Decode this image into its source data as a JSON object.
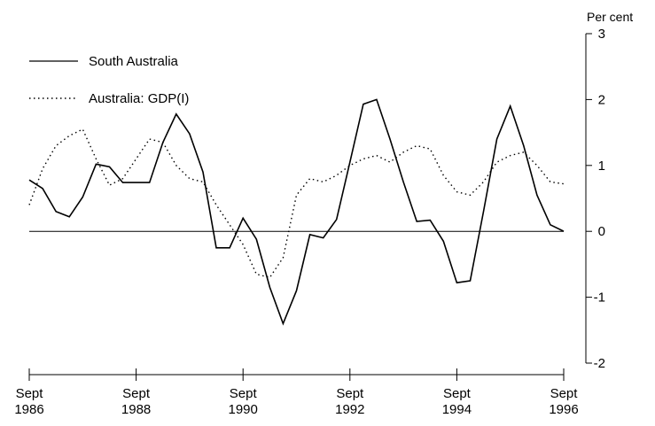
{
  "chart_data": {
    "type": "line",
    "title": "",
    "xlabel": "",
    "ylabel": "Per cent",
    "ylim": [
      -2,
      3
    ],
    "yticks": [
      -2,
      -1,
      0,
      1,
      2,
      3
    ],
    "yaxis_position": "right",
    "grid": false,
    "zero_line": true,
    "legend_position": "top-left",
    "xlim": [
      1986.67,
      1996.67
    ],
    "xticks": [
      {
        "x": 1986.67,
        "line1": "Sept",
        "line2": "1986"
      },
      {
        "x": 1988.67,
        "line1": "Sept",
        "line2": "1988"
      },
      {
        "x": 1990.67,
        "line1": "Sept",
        "line2": "1990"
      },
      {
        "x": 1992.67,
        "line1": "Sept",
        "line2": "1992"
      },
      {
        "x": 1994.67,
        "line1": "Sept",
        "line2": "1994"
      },
      {
        "x": 1996.67,
        "line1": "Sept",
        "line2": "1996"
      }
    ],
    "series": [
      {
        "name": "South Australia",
        "style": "solid",
        "color": "#000000",
        "x": [
          1986.67,
          1986.92,
          1987.17,
          1987.42,
          1987.67,
          1987.92,
          1988.17,
          1988.42,
          1988.67,
          1988.92,
          1989.17,
          1989.42,
          1989.67,
          1989.92,
          1990.17,
          1990.42,
          1990.67,
          1990.92,
          1991.17,
          1991.42,
          1991.67,
          1991.92,
          1992.17,
          1992.42,
          1992.67,
          1992.92,
          1993.17,
          1993.42,
          1993.67,
          1993.92,
          1994.17,
          1994.42,
          1994.67,
          1994.92,
          1995.17,
          1995.42,
          1995.67,
          1995.92,
          1996.17,
          1996.42,
          1996.67
        ],
        "values": [
          0.78,
          0.65,
          0.3,
          0.22,
          0.52,
          1.02,
          0.98,
          0.74,
          0.74,
          0.74,
          1.35,
          1.78,
          1.48,
          0.9,
          -0.25,
          -0.25,
          0.2,
          -0.12,
          -0.85,
          -1.4,
          -0.9,
          -0.05,
          -0.1,
          0.18,
          1.05,
          1.93,
          2.0,
          1.4,
          0.75,
          0.15,
          0.17,
          -0.15,
          -0.78,
          -0.75,
          0.3,
          1.4,
          1.9,
          1.3,
          0.55,
          0.1,
          0.0
        ]
      },
      {
        "name": "Australia: GDP(I)",
        "style": "dotted",
        "color": "#000000",
        "x": [
          1986.67,
          1986.92,
          1987.17,
          1987.42,
          1987.67,
          1987.92,
          1988.17,
          1988.42,
          1988.67,
          1988.92,
          1989.17,
          1989.42,
          1989.67,
          1989.92,
          1990.17,
          1990.42,
          1990.67,
          1990.92,
          1991.17,
          1991.42,
          1991.67,
          1991.92,
          1992.17,
          1992.42,
          1992.67,
          1992.92,
          1993.17,
          1993.42,
          1993.67,
          1993.92,
          1994.17,
          1994.42,
          1994.67,
          1994.92,
          1995.17,
          1995.42,
          1995.67,
          1995.92,
          1996.17,
          1996.42,
          1996.67
        ],
        "values": [
          0.4,
          0.95,
          1.3,
          1.45,
          1.55,
          1.1,
          0.7,
          0.8,
          1.1,
          1.4,
          1.35,
          1.0,
          0.8,
          0.75,
          0.4,
          0.1,
          -0.2,
          -0.65,
          -0.7,
          -0.4,
          0.55,
          0.8,
          0.75,
          0.85,
          1.0,
          1.1,
          1.15,
          1.05,
          1.2,
          1.3,
          1.25,
          0.85,
          0.6,
          0.55,
          0.75,
          1.05,
          1.15,
          1.2,
          1.0,
          0.75,
          0.72
        ]
      }
    ]
  }
}
